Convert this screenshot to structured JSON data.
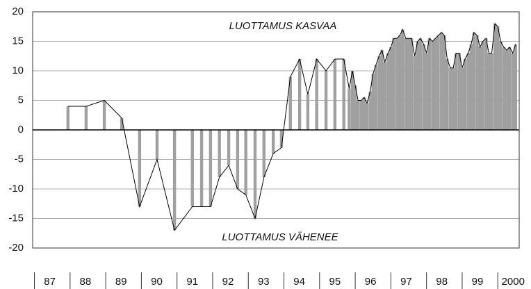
{
  "chart_data": {
    "type": "line",
    "annotations": [
      "LUOTTAMUS KASVAA",
      "LUOTTAMUS VÄHENEE"
    ],
    "x": [
      1987.94,
      1988.45,
      1988.96,
      1989.45,
      1989.95,
      1990.44,
      1990.93,
      1991.43,
      1991.69,
      1991.94,
      1992.19,
      1992.45,
      1992.7,
      1992.93,
      1993.19,
      1993.44,
      1993.7,
      1993.93,
      1994.18,
      1994.44,
      1994.67,
      1994.92,
      1995.18,
      1995.43,
      1995.68,
      1995.83,
      1995.92,
      1996.0,
      1996.08,
      1996.17,
      1996.25,
      1996.33,
      1996.42,
      1996.5,
      1996.58,
      1996.67,
      1996.75,
      1996.83,
      1996.92,
      1997.0,
      1997.08,
      1997.17,
      1997.25,
      1997.33,
      1997.42,
      1997.5,
      1997.58,
      1997.67,
      1997.75,
      1997.83,
      1997.92,
      1998.0,
      1998.08,
      1998.17,
      1998.25,
      1998.33,
      1998.42,
      1998.5,
      1998.58,
      1998.67,
      1998.75,
      1998.83,
      1998.92,
      1999.0,
      1999.08,
      1999.17,
      1999.25,
      1999.33,
      1999.42,
      1999.5,
      1999.58,
      1999.67,
      1999.75,
      1999.83,
      1999.92,
      2000.0,
      2000.08,
      2000.17,
      2000.25,
      2000.33,
      2000.42,
      2000.5
    ],
    "values": [
      4,
      4,
      5,
      2,
      -13,
      -5,
      -17,
      -13,
      -13,
      -13,
      -8,
      -6,
      -10,
      -11,
      -15,
      -8,
      -4,
      -3,
      9,
      12,
      6,
      12,
      10,
      12,
      12,
      7,
      10,
      7.5,
      5,
      5,
      5.5,
      4.5,
      6.5,
      9.5,
      11,
      12.5,
      13.5,
      11.5,
      13,
      14,
      15.5,
      15.5,
      16,
      17,
      15.5,
      15.5,
      15.5,
      12.5,
      15,
      15.5,
      14.5,
      13,
      15.5,
      15,
      15.5,
      16,
      16.5,
      16,
      12,
      10.5,
      10.5,
      13,
      13,
      10.5,
      12,
      13,
      14.5,
      16.5,
      16,
      14,
      15,
      15.5,
      13,
      13,
      18,
      17.5,
      15,
      14,
      13.5,
      14,
      13,
      14.5
    ],
    "color": "#000000",
    "bar_color": "#a0a0a0",
    "xlim": [
      1986.95,
      2000.6
    ],
    "xticks": [
      {
        "value": 1987,
        "label": "87"
      },
      {
        "value": 1988,
        "label": "88"
      },
      {
        "value": 1989,
        "label": "89"
      },
      {
        "value": 1990,
        "label": "90"
      },
      {
        "value": 1991,
        "label": "91"
      },
      {
        "value": 1992,
        "label": "92"
      },
      {
        "value": 1993,
        "label": "93"
      },
      {
        "value": 1994,
        "label": "94"
      },
      {
        "value": 1995,
        "label": "95"
      },
      {
        "value": 1996,
        "label": "96"
      },
      {
        "value": 1997,
        "label": "97"
      },
      {
        "value": 1998,
        "label": "98"
      },
      {
        "value": 1999,
        "label": "99"
      },
      {
        "value": 2000,
        "label": "2000"
      }
    ],
    "ylim": [
      -20,
      20
    ],
    "yticks": [
      -20,
      -15,
      -10,
      -5,
      0,
      5,
      10,
      15,
      20
    ],
    "grid": true
  }
}
